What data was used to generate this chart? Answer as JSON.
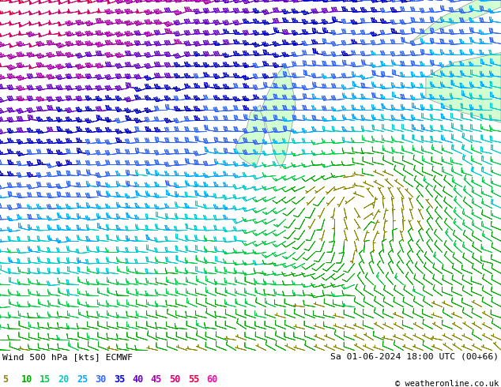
{
  "title_left": "Wind 500 hPa [kts] ECMWF",
  "title_right": "Sa 01-06-2024 18:00 UTC (00+66)",
  "copyright": "© weatheronline.co.uk",
  "legend_values": [
    5,
    10,
    15,
    20,
    25,
    30,
    35,
    40,
    45,
    50,
    55,
    60
  ],
  "legend_colors": [
    "#aaaa00",
    "#00bb00",
    "#00dd44",
    "#00dddd",
    "#00aaff",
    "#4444ff",
    "#8800cc",
    "#cc00cc",
    "#ff0066",
    "#ff3300",
    "#ff6600",
    "#ff00ff"
  ],
  "bg_color": "#ffffff",
  "plot_bg": "#d8d8d8",
  "land_color": "#ccffcc",
  "fig_width": 6.34,
  "fig_height": 4.9,
  "dpi": 100
}
